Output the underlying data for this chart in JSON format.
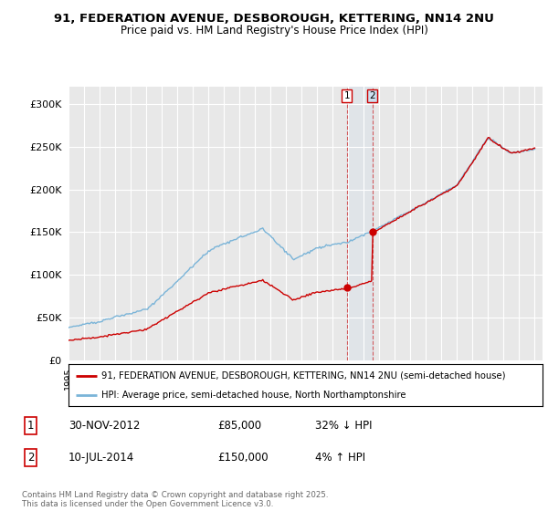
{
  "title_line1": "91, FEDERATION AVENUE, DESBOROUGH, KETTERING, NN14 2NU",
  "title_line2": "Price paid vs. HM Land Registry's House Price Index (HPI)",
  "ylim": [
    0,
    320000
  ],
  "xlim_start": 1995.0,
  "xlim_end": 2025.5,
  "hpi_color": "#7ab4d8",
  "price_color": "#cc0000",
  "background_color": "#e8e8e8",
  "legend_label_price": "91, FEDERATION AVENUE, DESBOROUGH, KETTERING, NN14 2NU (semi-detached house)",
  "legend_label_hpi": "HPI: Average price, semi-detached house, North Northamptonshire",
  "transaction1_date": "30-NOV-2012",
  "transaction1_price": 85000,
  "transaction1_hpi_pct": "32% ↓ HPI",
  "transaction2_date": "10-JUL-2014",
  "transaction2_price": 150000,
  "transaction2_hpi_pct": "4% ↑ HPI",
  "footnote": "Contains HM Land Registry data © Crown copyright and database right 2025.\nThis data is licensed under the Open Government Licence v3.0.",
  "yticks": [
    0,
    50000,
    100000,
    150000,
    200000,
    250000,
    300000
  ],
  "ytick_labels": [
    "£0",
    "£50K",
    "£100K",
    "£150K",
    "£200K",
    "£250K",
    "£300K"
  ]
}
